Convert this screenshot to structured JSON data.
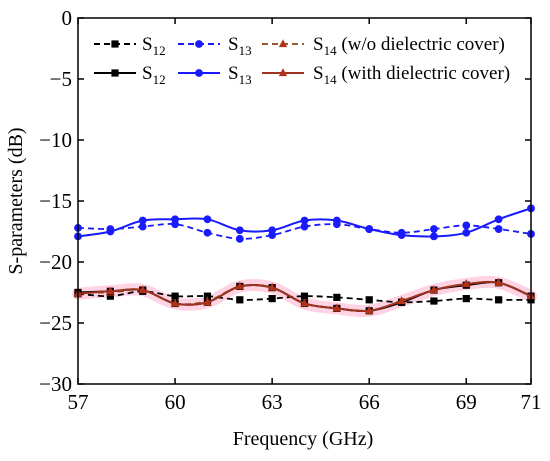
{
  "chart_data": {
    "type": "line",
    "title": "",
    "xlabel": "Frequency (GHz)",
    "ylabel": "S-parameters (dB)",
    "xlim": [
      57,
      71
    ],
    "ylim": [
      -30,
      0
    ],
    "xticks": [
      57,
      60,
      63,
      66,
      69,
      71
    ],
    "yticks": [
      0,
      -5,
      -10,
      -15,
      -20,
      -25,
      -30
    ],
    "grid": false,
    "legend_position": "top",
    "legend_groups": [
      "(w/o  dielectric cover)",
      "(with dielectric cover)"
    ],
    "colors": {
      "s12": "#000000",
      "s13": "#1a1aff",
      "s14_marker": "#b5321a",
      "s14_line_without": "#9b5a2d",
      "s14_line_with": "#a0331f",
      "s14_band": "#ffc8dc"
    },
    "series": [
      {
        "name": "S12",
        "name_main": "S",
        "name_sub": "12",
        "group": "(w/o  dielectric cover)",
        "dashed": true,
        "marker": "square",
        "color_key": "s12",
        "x": [
          57,
          58,
          59,
          60,
          61,
          62,
          63,
          64,
          65,
          66,
          67,
          68,
          69,
          70,
          71
        ],
        "y": [
          -22.6,
          -22.8,
          -22.4,
          -22.8,
          -22.8,
          -23.1,
          -23.0,
          -22.8,
          -22.9,
          -23.1,
          -23.3,
          -23.2,
          -23.0,
          -23.1,
          -23.1
        ]
      },
      {
        "name": "S13",
        "name_main": "S",
        "name_sub": "13",
        "group": "(w/o  dielectric cover)",
        "dashed": true,
        "marker": "circle",
        "color_key": "s13",
        "x": [
          57,
          58,
          59,
          60,
          61,
          62,
          63,
          64,
          65,
          66,
          67,
          68,
          69,
          70,
          71
        ],
        "y": [
          -17.2,
          -17.3,
          -17.1,
          -16.9,
          -17.6,
          -18.1,
          -17.8,
          -17.1,
          -16.9,
          -17.3,
          -17.6,
          -17.3,
          -17.0,
          -17.3,
          -17.7
        ]
      },
      {
        "name": "S14",
        "name_main": "S",
        "name_sub": "14",
        "group": "(w/o  dielectric cover)",
        "dashed": true,
        "marker": "triangle",
        "color_key": "s14_marker",
        "line_color_key": "s14_line_without",
        "x": [
          57,
          58,
          59,
          60,
          61,
          62,
          63,
          64,
          65,
          66,
          67,
          68,
          69,
          70,
          71
        ],
        "y": [
          -22.5,
          -22.5,
          -22.3,
          -23.4,
          -23.2,
          -22.0,
          -22.1,
          -23.4,
          -23.8,
          -24.0,
          -23.2,
          -22.3,
          -21.8,
          -21.7,
          -22.8
        ]
      },
      {
        "name": "S12",
        "name_main": "S",
        "name_sub": "12",
        "group": "(with dielectric cover)",
        "dashed": false,
        "marker": "square",
        "color_key": "s12",
        "x": [
          57,
          58,
          59,
          60,
          61,
          62,
          63,
          64,
          65,
          66,
          67,
          68,
          69,
          70,
          71
        ],
        "y": [
          -22.5,
          -22.4,
          -22.3,
          -23.4,
          -23.3,
          -22.0,
          -22.1,
          -23.4,
          -23.8,
          -24.0,
          -23.3,
          -22.3,
          -21.9,
          -21.7,
          -22.8
        ]
      },
      {
        "name": "S13",
        "name_main": "S",
        "name_sub": "13",
        "group": "(with dielectric cover)",
        "dashed": false,
        "marker": "circle",
        "color_key": "s13",
        "x": [
          57,
          58,
          59,
          60,
          61,
          62,
          63,
          64,
          65,
          66,
          67,
          68,
          69,
          70,
          71
        ],
        "y": [
          -17.9,
          -17.5,
          -16.6,
          -16.5,
          -16.5,
          -17.4,
          -17.4,
          -16.6,
          -16.6,
          -17.3,
          -17.8,
          -17.9,
          -17.6,
          -16.5,
          -15.6
        ]
      },
      {
        "name": "S14",
        "name_main": "S",
        "name_sub": "14",
        "group": "(with dielectric cover)",
        "dashed": false,
        "marker": "triangle",
        "color_key": "s14_marker",
        "line_color_key": "s14_line_with",
        "x": [
          57,
          58,
          59,
          60,
          61,
          62,
          63,
          64,
          65,
          66,
          67,
          68,
          69,
          70,
          71
        ],
        "y": [
          -22.6,
          -22.4,
          -22.3,
          -23.4,
          -23.3,
          -22.0,
          -22.1,
          -23.4,
          -23.8,
          -24.0,
          -23.2,
          -22.3,
          -21.8,
          -21.7,
          -22.8
        ]
      }
    ]
  }
}
